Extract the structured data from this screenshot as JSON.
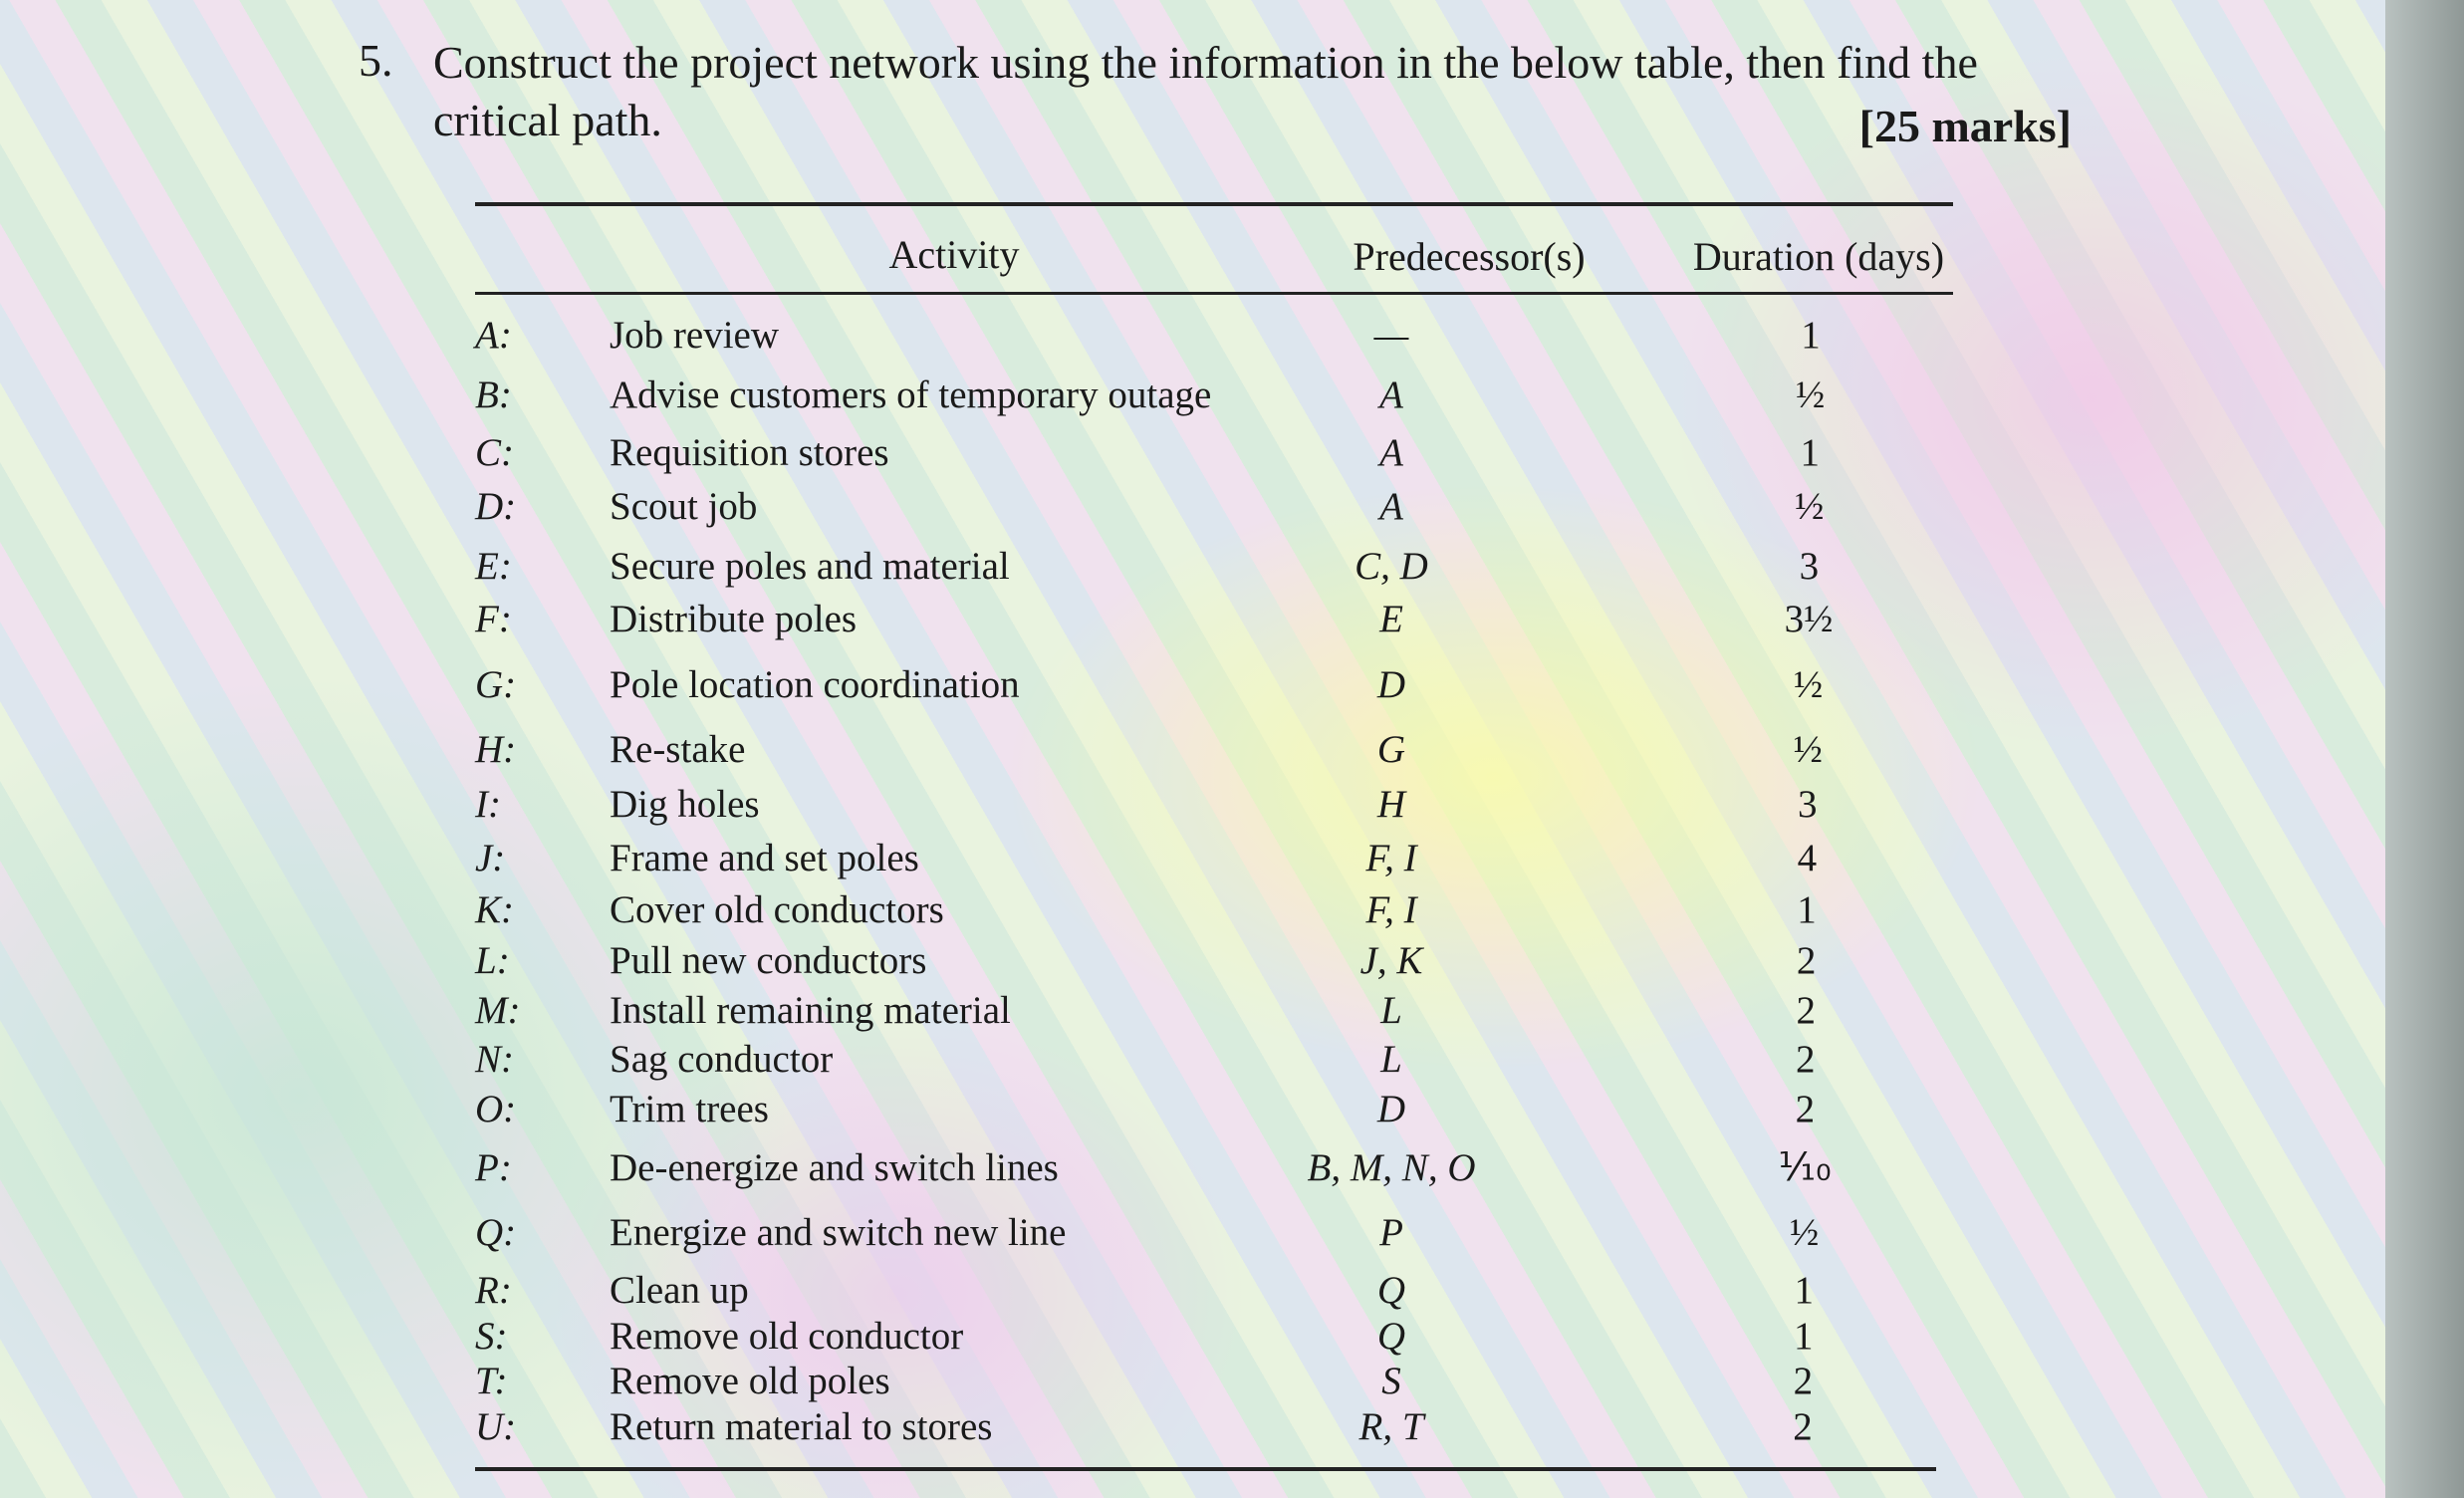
{
  "question": {
    "number": "5.",
    "text_line1": "Construct the project network using the information in the below table, then find the",
    "text_line2": "critical path.",
    "marks": "[25 marks]"
  },
  "table": {
    "header": [
      "Activity",
      "Predecessor(s)",
      "Duration (days)"
    ],
    "rows": [
      [
        "A:",
        "Job review",
        "—",
        "1"
      ],
      [
        "B:",
        "Advise customers of temporary outage",
        "A",
        "½"
      ],
      [
        "C:",
        "Requisition stores",
        "A",
        "1"
      ],
      [
        "D:",
        "Scout job",
        "A",
        "½"
      ],
      [
        "E:",
        "Secure poles and material",
        "C, D",
        "3"
      ],
      [
        "F:",
        "Distribute poles",
        "E",
        "3½"
      ],
      [
        "G:",
        "Pole location coordination",
        "D",
        "½"
      ],
      [
        "H:",
        "Re-stake",
        "G",
        "½"
      ],
      [
        "I:",
        "Dig holes",
        "H",
        "3"
      ],
      [
        "J:",
        "Frame and set poles",
        "F, I",
        "4"
      ],
      [
        "K:",
        "Cover old conductors",
        "F, I",
        "1"
      ],
      [
        "L:",
        "Pull new conductors",
        "J, K",
        "2"
      ],
      [
        "M:",
        "Install remaining material",
        "L",
        "2"
      ],
      [
        "N:",
        "Sag conductor",
        "L",
        "2"
      ],
      [
        "O:",
        "Trim trees",
        "D",
        "2"
      ],
      [
        "P:",
        "De-energize and switch lines",
        "B, M, N, O",
        "⅒"
      ],
      [
        "Q:",
        "Energize and switch new line",
        "P",
        "½"
      ],
      [
        "R:",
        "Clean up",
        "Q",
        "1"
      ],
      [
        "S:",
        "Remove old conductor",
        "Q",
        "1"
      ],
      [
        "T:",
        "Remove old poles",
        "S",
        "2"
      ],
      [
        "U:",
        "Return material to stores",
        "R, T",
        "2"
      ]
    ]
  }
}
